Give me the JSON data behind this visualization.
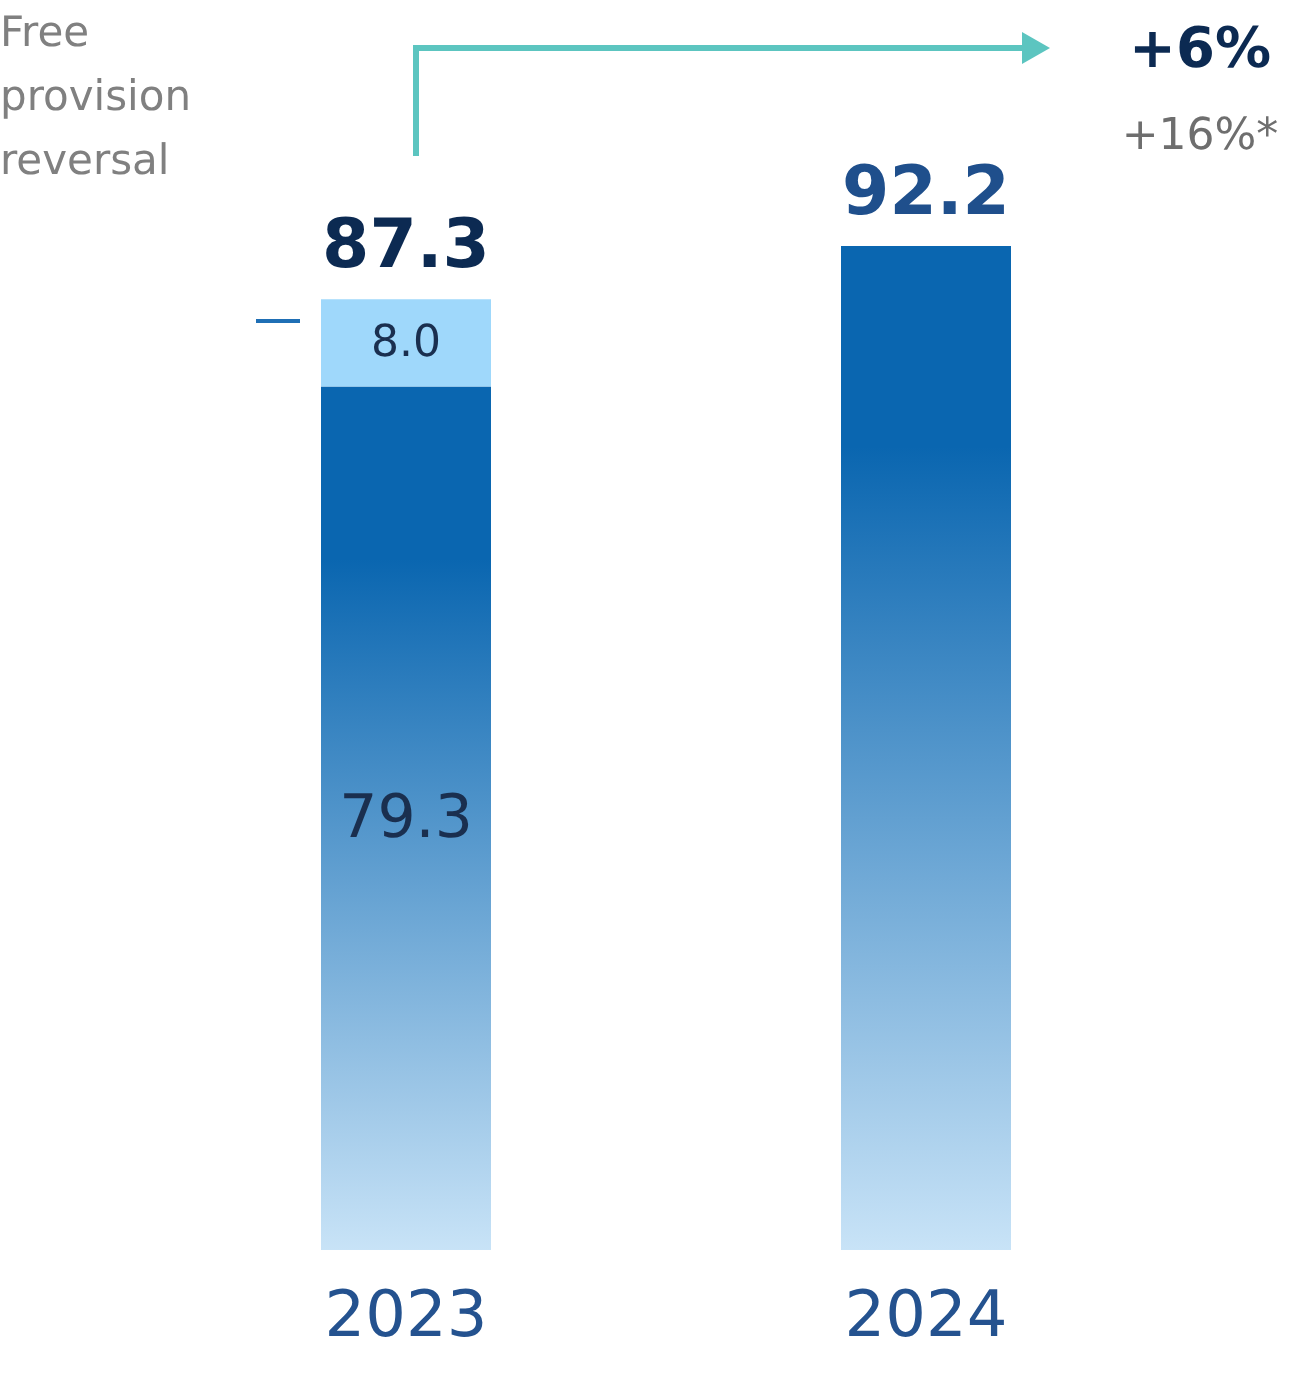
{
  "chart_data": {
    "type": "bar",
    "stacked": true,
    "categories": [
      "2023",
      "2024"
    ],
    "series": [
      {
        "color": "#0a66b0",
        "values": [
          79.3,
          92.2
        ],
        "value_labels": [
          "79.3",
          null
        ]
      },
      {
        "name": "Free provision reversal",
        "color": "#9fd8fb",
        "values": [
          8.0,
          null
        ],
        "value_labels": [
          "8.0",
          null
        ]
      }
    ],
    "totals": [
      "87.3",
      "92.2"
    ],
    "annotations": [
      "+6%",
      "+16%*"
    ],
    "legend": false,
    "grid": false
  }
}
